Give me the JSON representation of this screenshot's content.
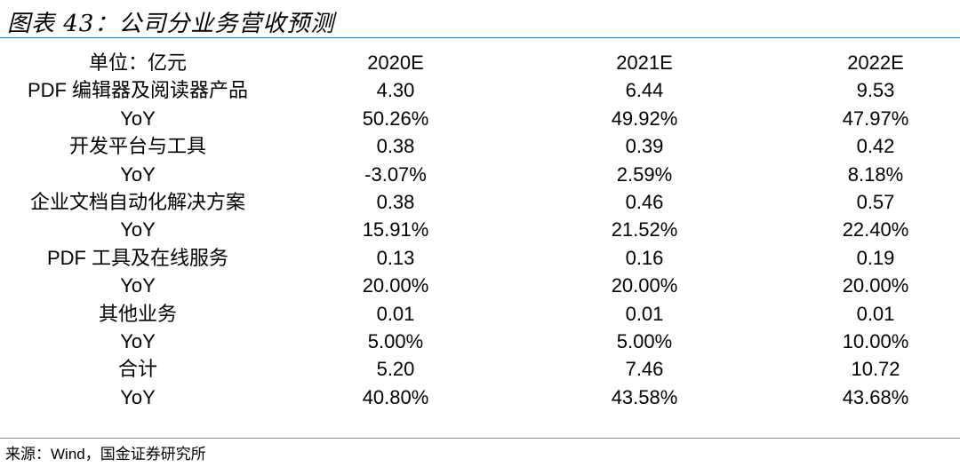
{
  "header": {
    "title": "图表 43：公司分业务营收预测"
  },
  "table": {
    "columns": [
      "单位：亿元",
      "2020E",
      "2021E",
      "2022E"
    ],
    "rows": [
      [
        "PDF 编辑器及阅读器产品",
        "4.30",
        "6.44",
        "9.53"
      ],
      [
        "YoY",
        "50.26%",
        "49.92%",
        "47.97%"
      ],
      [
        "开发平台与工具",
        "0.38",
        "0.39",
        "0.42"
      ],
      [
        "YoY",
        "-3.07%",
        "2.59%",
        "8.18%"
      ],
      [
        "企业文档自动化解决方案",
        "0.38",
        "0.46",
        "0.57"
      ],
      [
        "YoY",
        "15.91%",
        "21.52%",
        "22.40%"
      ],
      [
        "PDF 工具及在线服务",
        "0.13",
        "0.16",
        "0.19"
      ],
      [
        "YoY",
        "20.00%",
        "20.00%",
        "20.00%"
      ],
      [
        "其他业务",
        "0.01",
        "0.01",
        "0.01"
      ],
      [
        "YoY",
        "5.00%",
        "5.00%",
        "10.00%"
      ],
      [
        "合计",
        "5.20",
        "7.46",
        "10.72"
      ],
      [
        "YoY",
        "40.80%",
        "43.58%",
        "43.68%"
      ]
    ]
  },
  "footer": {
    "source": "来源：Wind，国金证券研究所"
  }
}
